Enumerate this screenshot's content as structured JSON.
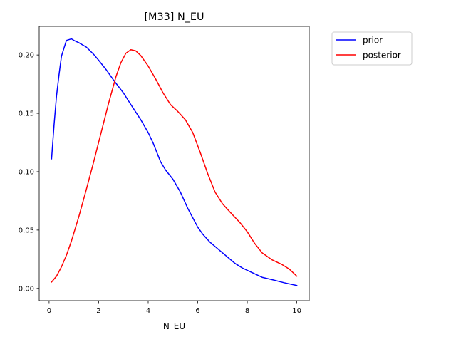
{
  "chart_data": {
    "type": "line",
    "title": "[M33] N_EU",
    "xlabel": "N_EU",
    "ylabel": "",
    "xlim": [
      -0.4,
      10.5
    ],
    "ylim": [
      -0.0105,
      0.2245
    ],
    "xticks": [
      0,
      2,
      4,
      6,
      8,
      10
    ],
    "yticks": [
      0.0,
      0.05,
      0.1,
      0.15,
      0.2
    ],
    "xtick_labels": [
      "0",
      "2",
      "4",
      "6",
      "8",
      "10"
    ],
    "ytick_labels": [
      "0.00",
      "0.05",
      "0.10",
      "0.15",
      "0.20"
    ],
    "grid": false,
    "legend_position": "outside-top-right",
    "series": [
      {
        "name": "prior",
        "color": "#0000ff",
        "x": [
          0.1,
          0.2,
          0.3,
          0.4,
          0.5,
          0.7,
          0.9,
          1.0,
          1.2,
          1.5,
          1.8,
          2.0,
          2.3,
          2.6,
          3.0,
          3.3,
          3.7,
          4.0,
          4.2,
          4.5,
          4.7,
          5.0,
          5.3,
          5.6,
          6.0,
          6.2,
          6.5,
          7.0,
          7.5,
          7.8,
          8.2,
          8.6,
          9.0,
          9.5,
          10.0
        ],
        "values": [
          0.111,
          0.14,
          0.165,
          0.183,
          0.199,
          0.2125,
          0.2138,
          0.2125,
          0.2105,
          0.2068,
          0.2005,
          0.1955,
          0.1875,
          0.1785,
          0.1675,
          0.1575,
          0.1445,
          0.1335,
          0.1245,
          0.1085,
          0.1015,
          0.0935,
          0.0825,
          0.0685,
          0.0525,
          0.0465,
          0.0395,
          0.0305,
          0.0215,
          0.0175,
          0.0135,
          0.0095,
          0.0075,
          0.0048,
          0.0025
        ]
      },
      {
        "name": "posterior",
        "color": "#ff0000",
        "x": [
          0.1,
          0.3,
          0.5,
          0.7,
          0.9,
          1.2,
          1.5,
          1.8,
          2.1,
          2.4,
          2.7,
          2.9,
          3.1,
          3.3,
          3.5,
          3.7,
          4.0,
          4.3,
          4.6,
          4.9,
          5.2,
          5.5,
          5.8,
          6.1,
          6.4,
          6.7,
          7.0,
          7.3,
          7.7,
          8.0,
          8.3,
          8.6,
          9.0,
          9.4,
          9.7,
          10.0
        ],
        "values": [
          0.0055,
          0.0105,
          0.0185,
          0.0285,
          0.0405,
          0.0615,
          0.0845,
          0.1085,
          0.1335,
          0.1585,
          0.1815,
          0.1935,
          0.2015,
          0.2045,
          0.2035,
          0.1995,
          0.1905,
          0.1795,
          0.1675,
          0.1575,
          0.1515,
          0.1445,
          0.1335,
          0.1165,
          0.0985,
          0.0825,
          0.0725,
          0.0655,
          0.0565,
          0.0485,
          0.0385,
          0.0305,
          0.0245,
          0.0205,
          0.0165,
          0.0105
        ]
      }
    ]
  }
}
